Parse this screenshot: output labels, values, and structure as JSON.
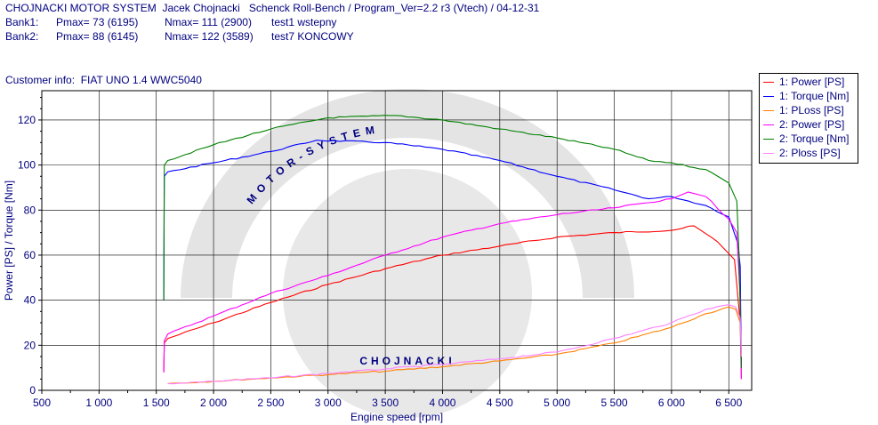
{
  "header": {
    "line1": "CHOJNACKI MOTOR SYSTEM  Jacek Chojnacki   Schenck Roll-Bench / Program_Ver=2.2 r3 (Vtech) / 04-12-31",
    "bank1_label": "Bank1:",
    "bank1_pmax": "Pmax= 73 (6195)",
    "bank1_nmax": "Nmax= 111 (2900)",
    "bank1_test": "test1 wstepny",
    "bank2_label": "Bank2:",
    "bank2_pmax": "Pmax= 88 (6145)",
    "bank2_nmax": "Nmax= 122 (3589)",
    "bank2_test": "test7 KONCOWY"
  },
  "customer_info": "Customer info:  FIAT UNO 1.4 WWC5040",
  "watermark": {
    "text": "CHOJNACKI",
    "arc_text": "MOTOR-SYSTEM"
  },
  "chart_data": {
    "type": "line",
    "xlabel": "Engine speed [rpm]",
    "ylabel": "Power [PS] / Torque [Nm]",
    "xlim": [
      500,
      6700
    ],
    "ylim": [
      0,
      133
    ],
    "x_ticks": [
      500,
      1000,
      1500,
      2000,
      2500,
      3000,
      3500,
      4000,
      4500,
      5000,
      5500,
      6000,
      6500
    ],
    "x_tick_labels": [
      "500",
      "1 000",
      "1 500",
      "2 000",
      "2 500",
      "3 000",
      "3 500",
      "4 000",
      "4 500",
      "5 000",
      "5 500",
      "6 000",
      "6 500"
    ],
    "y_ticks": [
      0,
      20,
      40,
      60,
      80,
      100,
      120
    ],
    "y_tick_labels": [
      "0",
      "20",
      "40",
      "60",
      "80",
      "100",
      "120"
    ],
    "grid": true,
    "legend_position": "top-right",
    "series": [
      {
        "name": "1: Power [PS]",
        "color": "#ff0000",
        "x": [
          1565,
          1570,
          1600,
          2000,
          2500,
          3000,
          3500,
          4000,
          4500,
          5000,
          5500,
          6000,
          6195,
          6400,
          6550,
          6600,
          6610
        ],
        "y": [
          8,
          21,
          23,
          30,
          39,
          47,
          54,
          60,
          64,
          68,
          70,
          71,
          73,
          66,
          58,
          30,
          5
        ]
      },
      {
        "name": "1: Torque [Nm]",
        "color": "#0000ff",
        "x": [
          1565,
          1570,
          1600,
          2000,
          2500,
          2900,
          3500,
          4000,
          4500,
          5000,
          5500,
          5800,
          6000,
          6300,
          6500,
          6580,
          6600,
          6610
        ],
        "y": [
          40,
          95,
          97,
          101,
          106,
          111,
          110,
          107,
          102,
          95,
          89,
          85,
          86,
          82,
          77,
          65,
          55,
          10
        ]
      },
      {
        "name": "1: PLoss [PS]",
        "color": "#ff8000",
        "x": [
          1600,
          2000,
          2500,
          3000,
          3500,
          4000,
          4500,
          5000,
          5500,
          6000,
          6300,
          6500,
          6560,
          6600,
          6610
        ],
        "y": [
          3,
          4,
          5.5,
          7,
          8.5,
          10.5,
          13,
          16,
          21,
          28,
          34,
          37,
          36,
          30,
          15
        ]
      },
      {
        "name": "2: Power [PS]",
        "color": "#ff00ff",
        "x": [
          1565,
          1570,
          1600,
          2000,
          2500,
          3000,
          3500,
          4000,
          4500,
          5000,
          5500,
          6000,
          6145,
          6300,
          6500,
          6570,
          6600,
          6610
        ],
        "y": [
          8,
          22,
          25,
          33,
          43,
          51,
          60,
          68,
          74,
          78,
          81,
          85,
          88,
          86,
          76,
          70,
          40,
          5
        ]
      },
      {
        "name": "2: Torque [Nm]",
        "color": "#008000",
        "x": [
          1565,
          1570,
          1600,
          2000,
          2500,
          3000,
          3589,
          4000,
          4500,
          5000,
          5500,
          5800,
          6000,
          6300,
          6500,
          6570,
          6590,
          6610
        ],
        "y": [
          40,
          100,
          102,
          109,
          116,
          121,
          122,
          120,
          116,
          112,
          107,
          102,
          101,
          98,
          92,
          84,
          60,
          10
        ]
      },
      {
        "name": "2: Ploss [PS]",
        "color": "#ff80ff",
        "x": [
          1600,
          2000,
          2500,
          3000,
          3500,
          4000,
          4500,
          5000,
          5500,
          6000,
          6300,
          6500,
          6560,
          6600,
          6610
        ],
        "y": [
          3,
          4,
          5.5,
          7.5,
          9.5,
          11.5,
          14,
          17,
          23,
          30,
          36,
          38,
          37,
          32,
          15
        ]
      }
    ]
  }
}
